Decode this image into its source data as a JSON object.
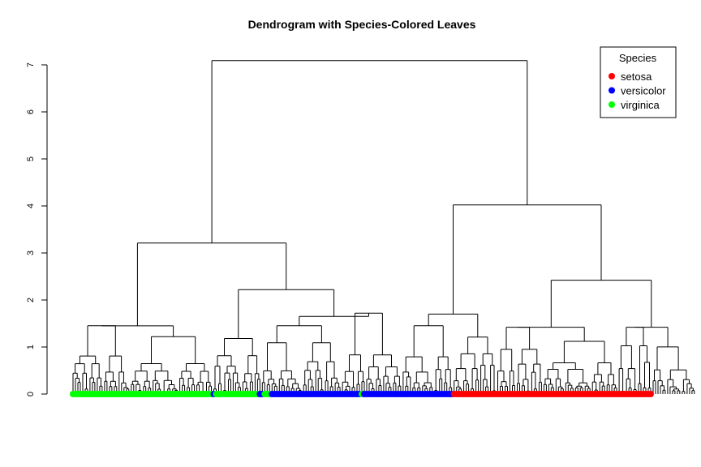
{
  "chart_data": {
    "type": "dendrogram",
    "title": "Dendrogram with Species-Colored Leaves",
    "xlabel": "",
    "ylabel": "",
    "ylim": [
      0,
      7.1
    ],
    "y_ticks": [
      "0",
      "1",
      "2",
      "3",
      "4",
      "5",
      "6",
      "7"
    ],
    "legend": {
      "title": "Species",
      "placement": "top-right",
      "entries": [
        {
          "name": "setosa",
          "color": "#ff0000"
        },
        {
          "name": "versicolor",
          "color": "#0000ff"
        },
        {
          "name": "virginica",
          "color": "#00ff00"
        }
      ]
    },
    "leaf_order_species": [
      {
        "species": "virginica",
        "count": 58
      },
      {
        "species": "versicolor",
        "count": 1
      },
      {
        "species": "virginica",
        "count": 18
      },
      {
        "species": "versicolor",
        "count": 2
      },
      {
        "species": "virginica",
        "count": 3
      },
      {
        "species": "versicolor",
        "count": 37
      },
      {
        "species": "virginica",
        "count": 1
      },
      {
        "species": "versicolor",
        "count": 37
      },
      {
        "species": "setosa",
        "count": 82
      }
    ],
    "merges": [
      {
        "height": 7.09,
        "label": "root: left group + right group"
      },
      {
        "height": 4.02,
        "label": "right group: versicolor block + setosa block"
      },
      {
        "height": 3.21,
        "label": "left group: virginica-dominant"
      },
      {
        "height": 2.42,
        "label": "setosa block"
      },
      {
        "height": 2.22,
        "label": "mixed virginica / versicolor"
      },
      {
        "height": 1.7,
        "label": "versicolor block"
      },
      {
        "height": 1.65,
        "label": "mixed versicolor"
      },
      {
        "height": 1.45,
        "label": "virginica subcluster"
      },
      {
        "height": 1.45,
        "label": "versicolor subcluster"
      },
      {
        "height": 1.42,
        "label": "setosa subcluster"
      },
      {
        "height": 1.42,
        "label": "setosa subcluster"
      }
    ]
  }
}
